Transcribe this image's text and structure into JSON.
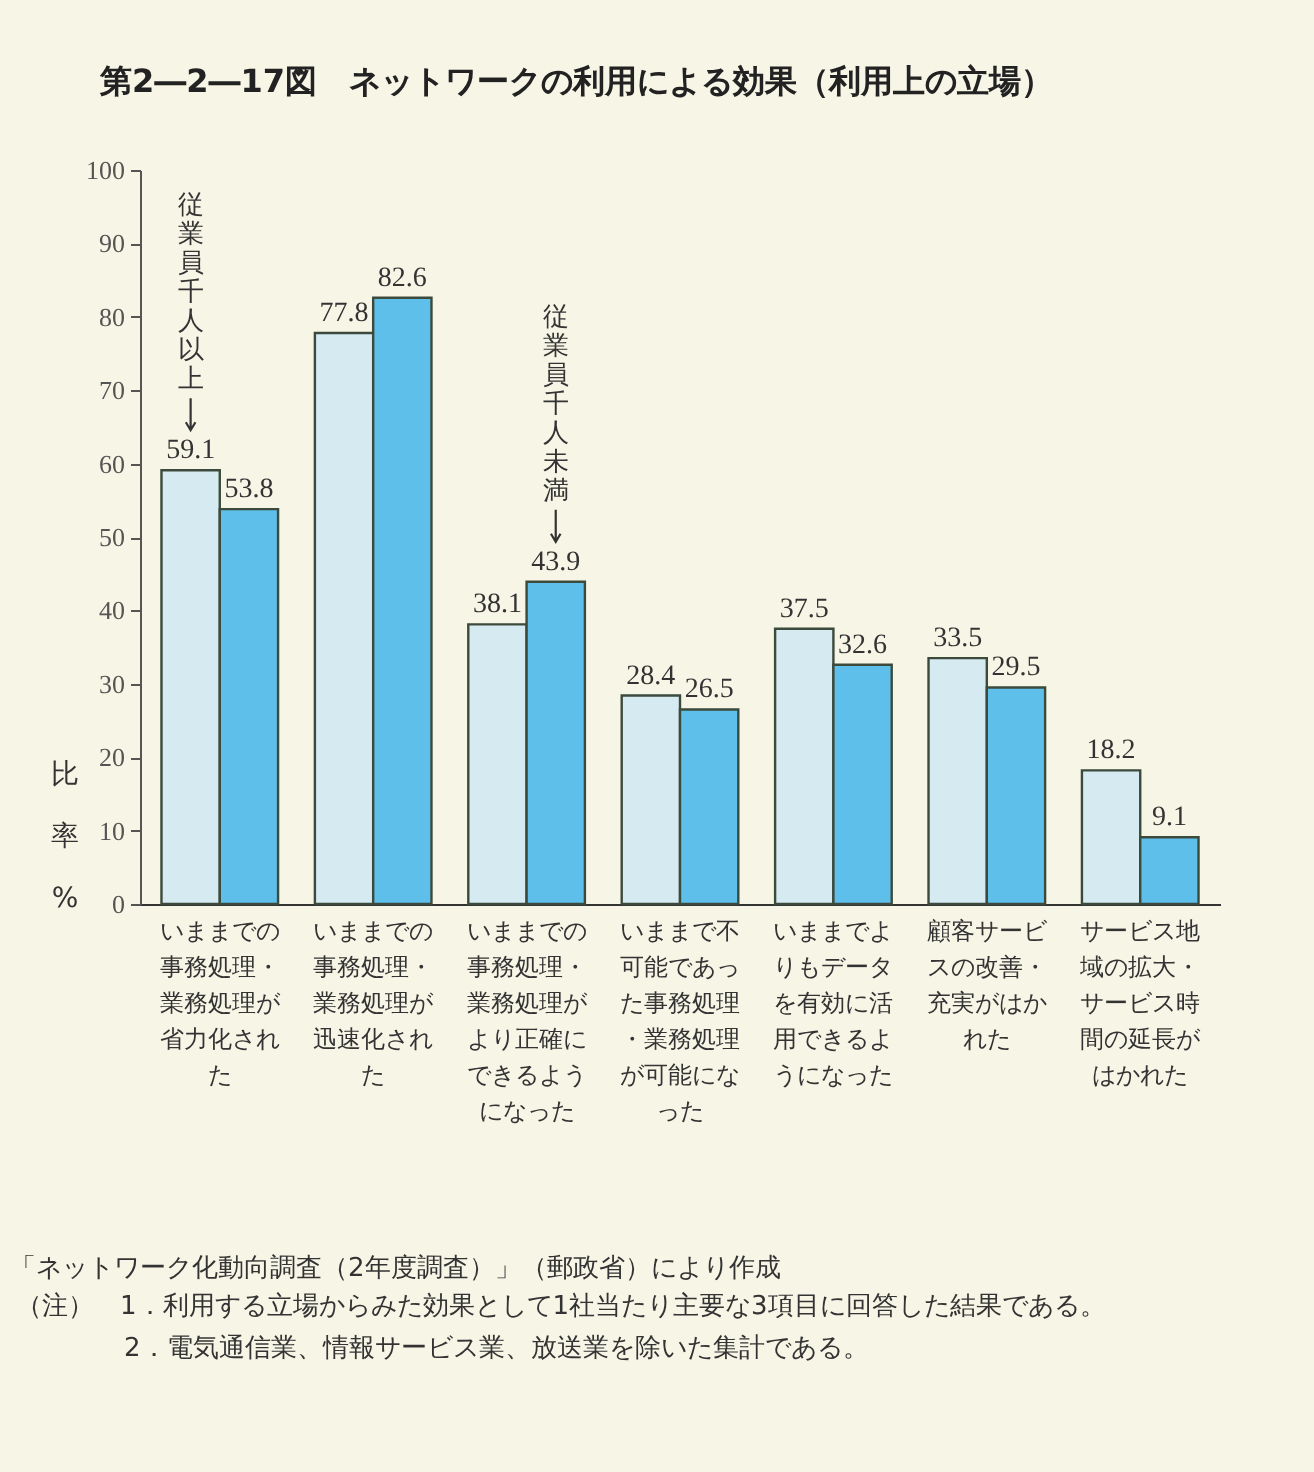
{
  "chart_data": {
    "type": "bar",
    "title": "第2―2―17図　ネットワークの利用による効果（利用上の立場）",
    "ylabel": "比率%",
    "categories": [
      "いままでの事務処理・業務処理が省力化された",
      "いままでの事務処理・業務処理が迅速化された",
      "いままでの事務処理・業務処理がより正確にできるようになった",
      "いままで不可能であった事務処理・業務処理が可能になった",
      "いままでよりもデータを有効に活用できるようになった",
      "顧客サービスの改善・充実がはかれた",
      "サービス地域の拡大・サービス時間の延長がはかれた"
    ],
    "series": [
      {
        "name": "従業員千人以上",
        "color": "#d6eaf2",
        "values": [
          59.1,
          77.8,
          38.1,
          28.4,
          37.5,
          33.5,
          18.2
        ]
      },
      {
        "name": "従業員千人未満",
        "color": "#5ec0ea",
        "values": [
          53.8,
          82.6,
          43.9,
          26.5,
          32.6,
          29.5,
          9.1
        ]
      }
    ],
    "ylim": [
      0,
      100
    ],
    "yticks": [
      0,
      10,
      20,
      30,
      40,
      50,
      60,
      70,
      80,
      90,
      100
    ],
    "data_labels": true,
    "grid": false,
    "legend": false,
    "annotations": [
      "「ネットワーク化動向調査（2年度調査）」（郵政省）により作成",
      "（注）　1．利用する立場からみた効果として1社当たり主要な3項目に回答した結果である。",
      "2．電気通信業、情報サービス業、放送業を除いた集計である。"
    ]
  }
}
